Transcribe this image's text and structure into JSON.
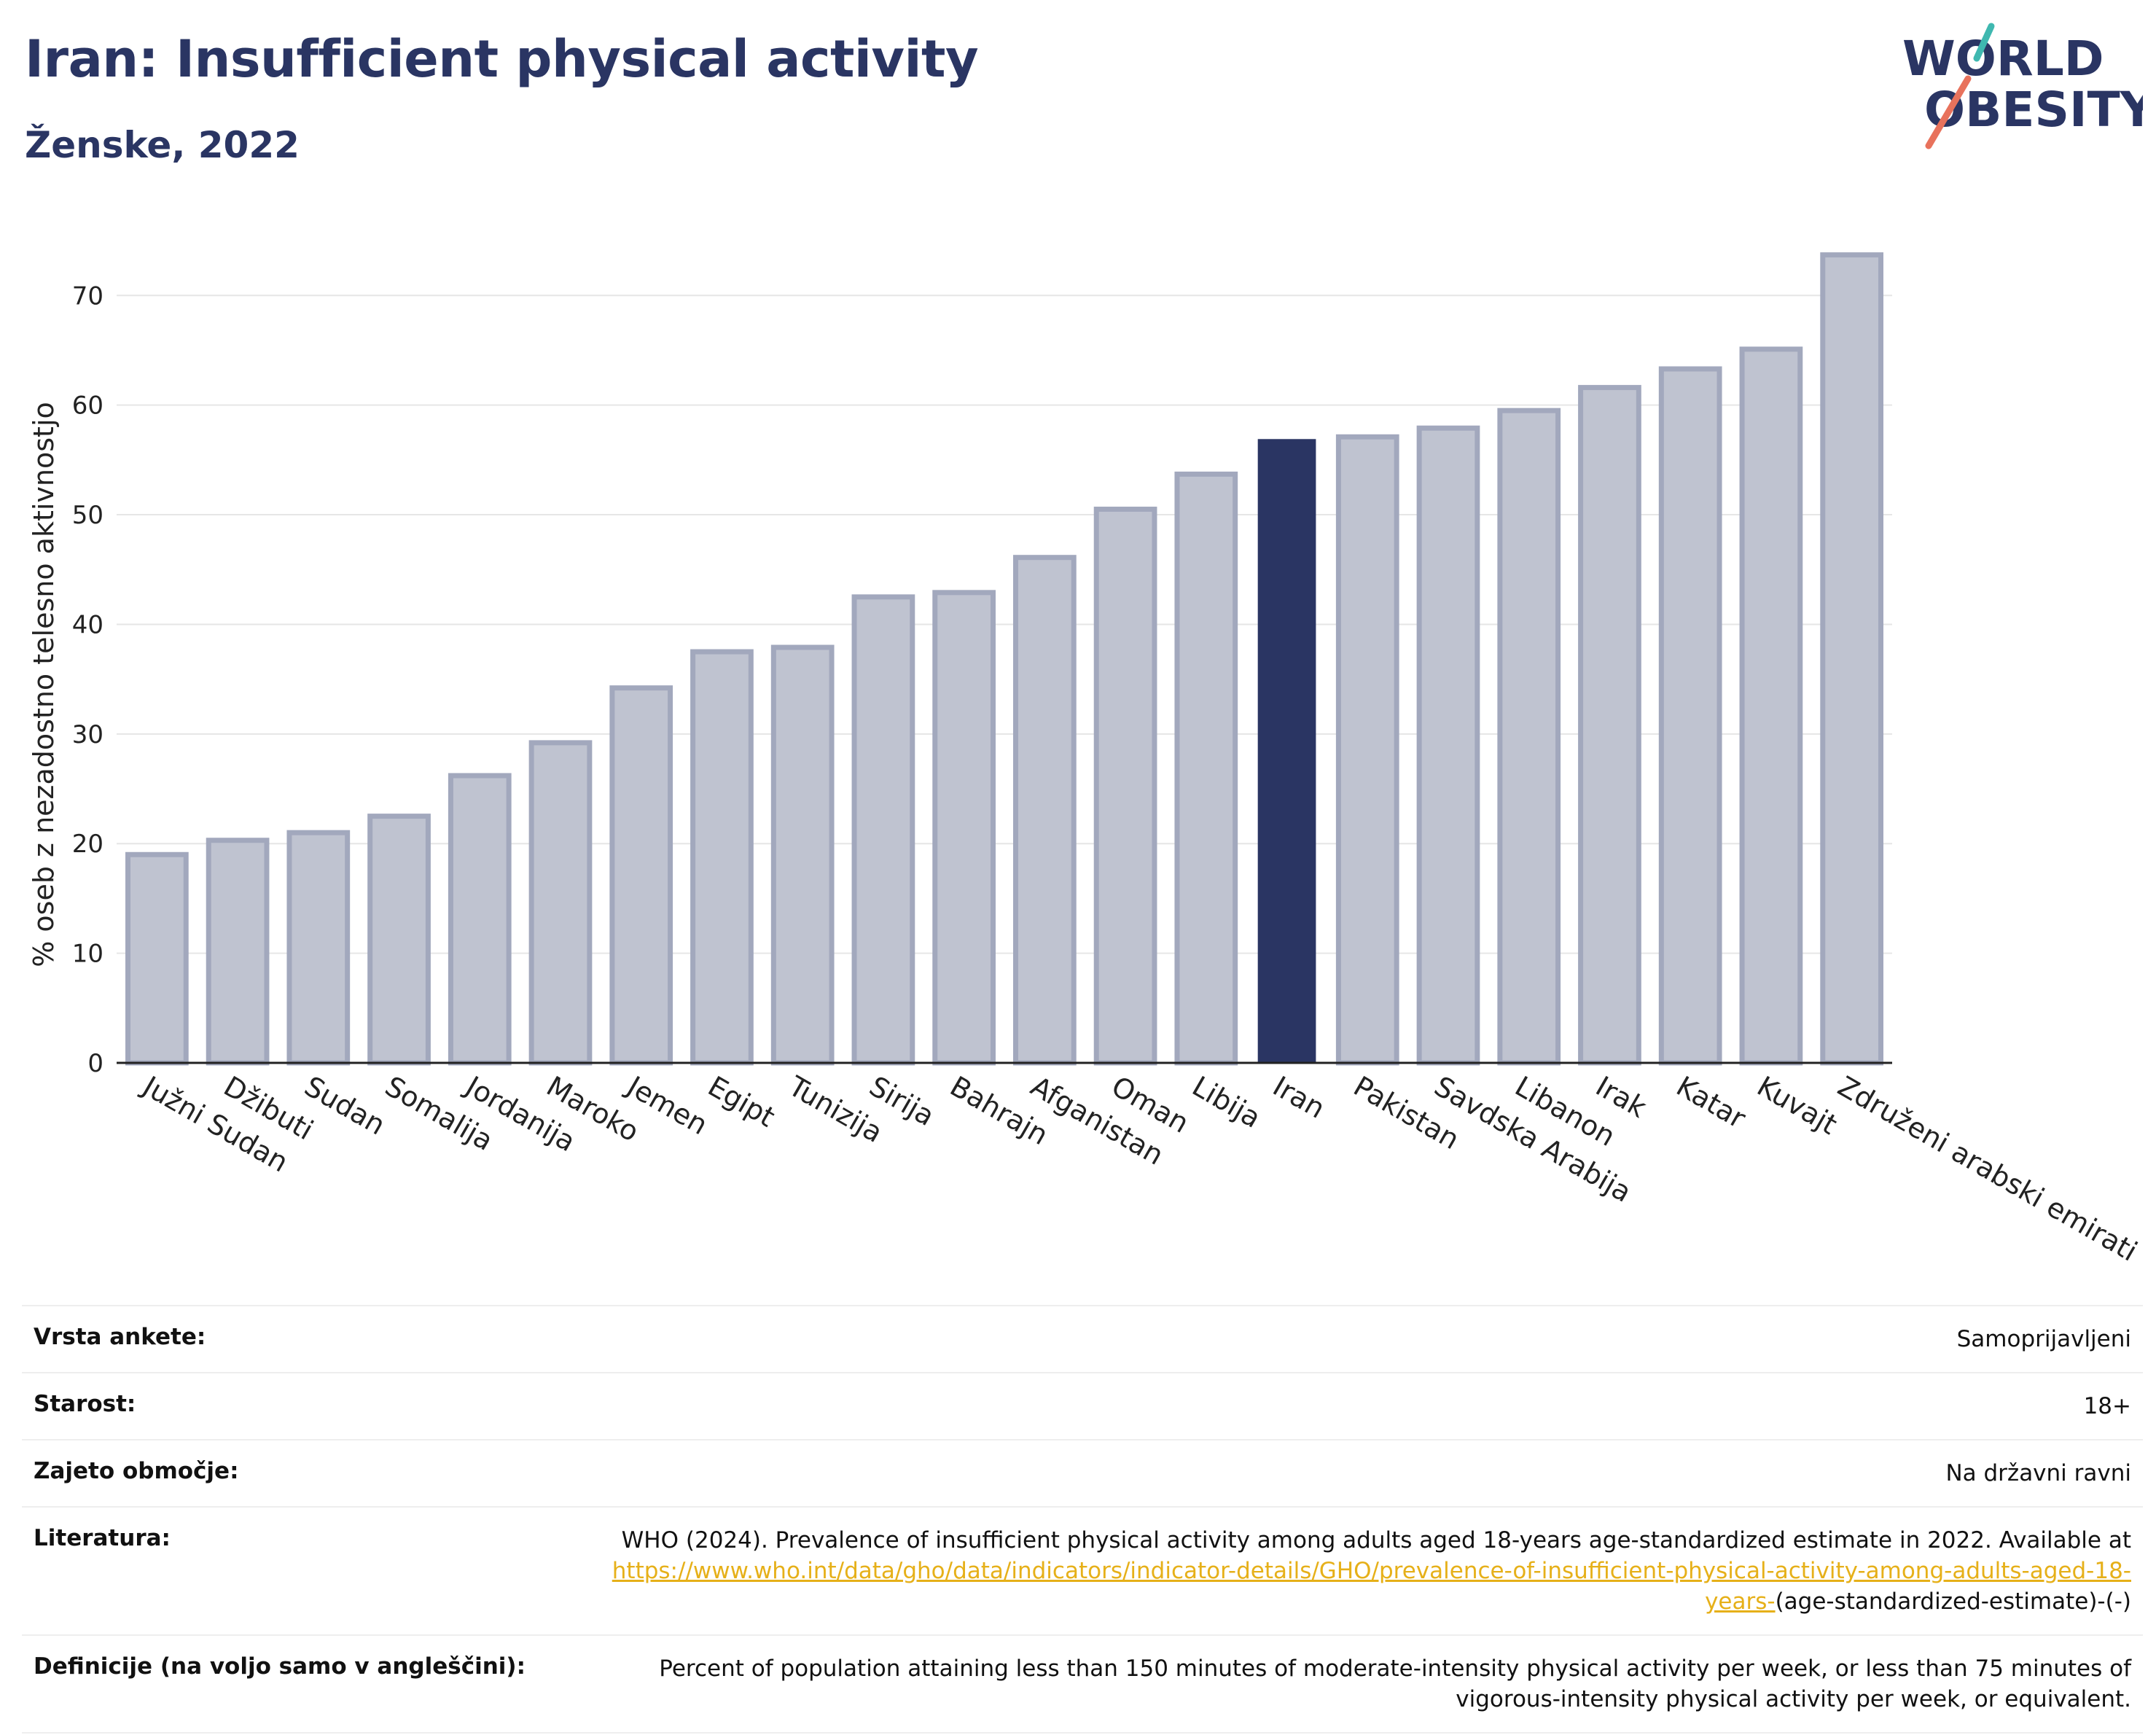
{
  "header": {
    "title": "Iran: Insufficient physical activity",
    "subtitle": "Ženske, 2022"
  },
  "logo": {
    "line1": "WORLD",
    "line2": "OBESITY"
  },
  "colors": {
    "highlight": "#2a3563",
    "bar": "#bfc3d0",
    "bar_edge": "#a2a8bd",
    "link": "#e6b019"
  },
  "chart_data": {
    "type": "bar",
    "ylabel": "% oseb z nezadostno telesno aktivnostjo",
    "xlabel": "",
    "ylim": [
      0,
      77
    ],
    "yticks": [
      0,
      10,
      20,
      30,
      40,
      50,
      60,
      70
    ],
    "grid": true,
    "highlight": "Iran",
    "categories": [
      "Južni Sudan",
      "Džibuti",
      "Sudan",
      "Somalija",
      "Jordanija",
      "Maroko",
      "Jemen",
      "Egipt",
      "Tunizija",
      "Sirija",
      "Bahrajn",
      "Afganistan",
      "Oman",
      "Libija",
      "Iran",
      "Pakistan",
      "Savdska Arabija",
      "Libanon",
      "Irak",
      "Katar",
      "Kuvajt",
      "Združeni arabski emirati"
    ],
    "values": [
      19.0,
      20.3,
      21.0,
      22.5,
      26.2,
      29.2,
      34.2,
      37.5,
      37.9,
      42.5,
      42.9,
      46.1,
      50.5,
      53.7,
      56.9,
      57.1,
      57.9,
      59.5,
      61.6,
      63.3,
      65.1,
      73.7
    ]
  },
  "info": {
    "survey_label": "Vrsta ankete:",
    "survey_value": "Samoprijavljeni",
    "age_label": "Starost:",
    "age_value": "18+",
    "coverage_label": "Zajeto območje:",
    "coverage_value": "Na državni ravni",
    "ref_label": "Literatura:",
    "ref_text": "WHO (2024). Prevalence of insufficient physical activity among adults aged 18-years age-standardized estimate in 2022. Available at",
    "ref_link": "https://www.who.int/data/gho/data/indicators/indicator-details/GHO/prevalence-of-insufficient-physical-activity-among-adults-aged-18-years-",
    "ref_tail": "(age-standardized-estimate)-(-)",
    "def_label": "Definicije (na voljo samo v angleščini):",
    "def_value": "Percent of population attaining less than 150 minutes of moderate-intensity physical activity per week, or less than 75 minutes of vigorous-intensity physical activity per week, or equivalent."
  }
}
